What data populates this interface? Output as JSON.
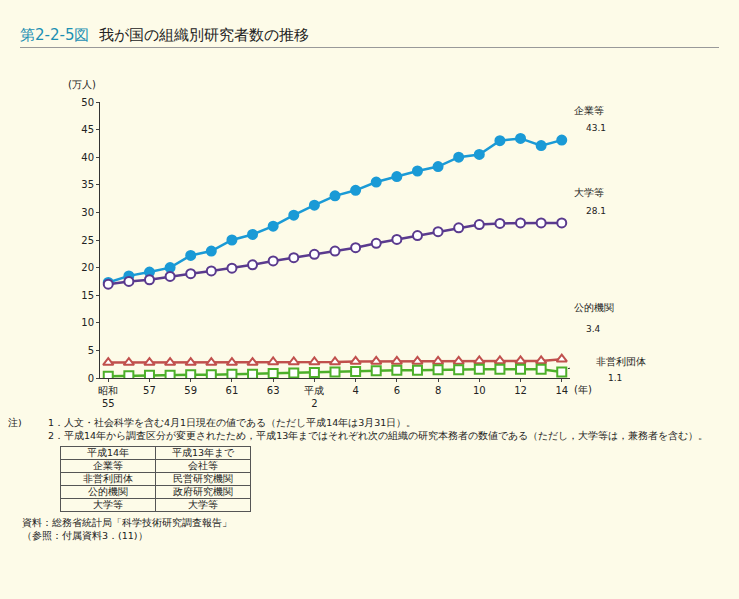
{
  "figure_label": "第2-2-5図",
  "chart_data": {
    "type": "line",
    "title": "我が国の組織別研究者数の推移",
    "y_label": "(万人)",
    "x_label": "(年)",
    "categories": [
      "昭和\n55",
      null,
      "57",
      null,
      "59",
      null,
      "61",
      null,
      "63",
      null,
      "平成\n2",
      null,
      "4",
      null,
      "6",
      null,
      "8",
      null,
      "10",
      null,
      "12",
      null,
      "14"
    ],
    "series": [
      {
        "name": "企業等",
        "color": "#1a9ad6",
        "marker": "circle",
        "values": [
          17.3,
          18.5,
          19.2,
          20.0,
          22.2,
          23.0,
          25.0,
          26.0,
          27.5,
          29.5,
          31.3,
          33.0,
          34.0,
          35.5,
          36.5,
          37.5,
          38.3,
          40.0,
          40.5,
          43.0,
          43.4,
          42.1,
          43.1
        ]
      },
      {
        "name": "大学等",
        "color": "#5a3a8e",
        "marker": "circle-open",
        "values": [
          17.0,
          17.5,
          17.8,
          18.4,
          18.9,
          19.4,
          19.9,
          20.5,
          21.2,
          21.8,
          22.4,
          23.0,
          23.6,
          24.4,
          25.1,
          25.8,
          26.5,
          27.2,
          27.8,
          28.0,
          28.1,
          28.1,
          28.1
        ]
      },
      {
        "name": "公的機関",
        "color": "#c0504d",
        "marker": "triangle-up-open",
        "values": [
          2.8,
          2.8,
          2.8,
          2.8,
          2.8,
          2.8,
          2.8,
          2.8,
          2.9,
          2.9,
          2.9,
          2.9,
          3.0,
          3.0,
          3.0,
          3.0,
          3.0,
          3.0,
          3.1,
          3.1,
          3.1,
          3.1,
          3.4
        ]
      },
      {
        "name": "非営利団体",
        "color": "#4caf2a",
        "marker": "square-open",
        "values": [
          0.3,
          0.4,
          0.5,
          0.5,
          0.6,
          0.6,
          0.7,
          0.7,
          0.8,
          0.9,
          1.0,
          1.1,
          1.2,
          1.3,
          1.4,
          1.4,
          1.5,
          1.5,
          1.6,
          1.6,
          1.6,
          1.6,
          1.1
        ]
      }
    ],
    "ylim": [
      0,
      50
    ],
    "yticks": [
      0,
      5,
      10,
      15,
      20,
      25,
      30,
      35,
      40,
      45,
      50
    ],
    "grid": false
  },
  "notes": [
    {
      "head": "注)",
      "text": "1．人文・社会科学を含む4月1日現在の値である（ただし平成14年は3月31日）。"
    },
    {
      "head": "",
      "text": "2．平成14年から調査区分が変更されたため，平成13年まではそれぞれ次の組織の研究本務者の数値である（ただし，大学等は，兼務者を含む）。"
    }
  ],
  "table": {
    "header": [
      "平成14年",
      "平成13年まで"
    ],
    "rows": [
      [
        "企業等",
        "会社等"
      ],
      [
        "非営利団体",
        "民営研究機関"
      ],
      [
        "公的機関",
        "政府研究機関"
      ],
      [
        "大学等",
        "大学等"
      ]
    ]
  },
  "source": [
    "資料：総務省統計局「科学技術研究調査報告」",
    "（参照：付属資料3．(11)）"
  ]
}
